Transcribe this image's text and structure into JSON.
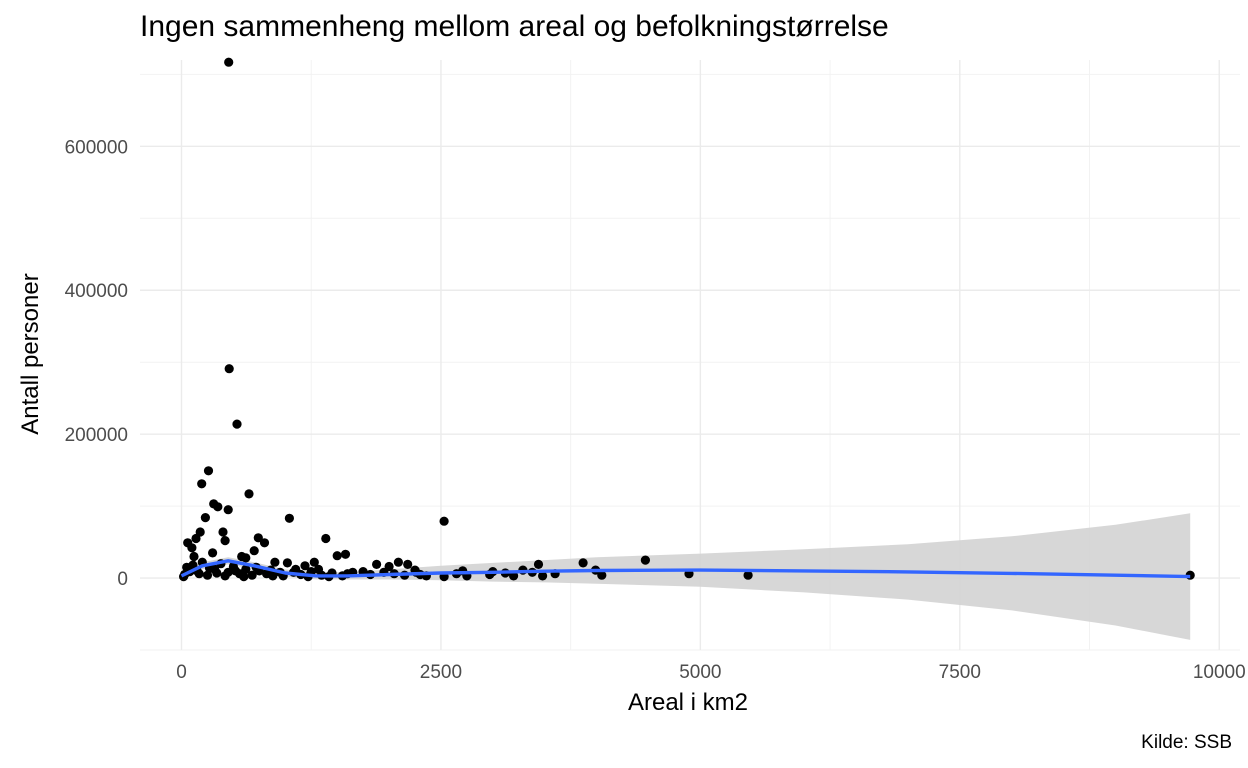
{
  "chart_data": {
    "type": "scatter",
    "title": "Ingen sammenheng mellom areal og befolkningstørrelse",
    "xlabel": "Areal i km2",
    "ylabel": "Antall personer",
    "caption": "Kilde: SSB",
    "xlim": [
      -400,
      10200
    ],
    "ylim": [
      -100000,
      720000
    ],
    "x_ticks": [
      0,
      2500,
      5000,
      7500,
      10000
    ],
    "x_tick_labels": [
      "0",
      "2500",
      "5000",
      "7500",
      "10000"
    ],
    "y_ticks": [
      0,
      200000,
      400000,
      600000
    ],
    "y_tick_labels": [
      "0",
      "200000",
      "400000",
      "600000"
    ],
    "grid": true,
    "point_color": "#000000",
    "smooth_color": "#3366ff",
    "band_color": "#d3d3d3",
    "points": [
      [
        455,
        717000
      ],
      [
        460,
        291000
      ],
      [
        535,
        214000
      ],
      [
        260,
        149000
      ],
      [
        650,
        117000
      ],
      [
        195,
        131000
      ],
      [
        310,
        103000
      ],
      [
        350,
        99000
      ],
      [
        450,
        95000
      ],
      [
        400,
        64000
      ],
      [
        1040,
        83000
      ],
      [
        2530,
        79000
      ],
      [
        1390,
        55000
      ],
      [
        230,
        84000
      ],
      [
        180,
        64000
      ],
      [
        740,
        56000
      ],
      [
        800,
        49000
      ],
      [
        700,
        38000
      ],
      [
        60,
        49000
      ],
      [
        140,
        55000
      ],
      [
        100,
        42000
      ],
      [
        120,
        30000
      ],
      [
        300,
        35000
      ],
      [
        420,
        52000
      ],
      [
        580,
        30000
      ],
      [
        620,
        28000
      ],
      [
        900,
        22000
      ],
      [
        1020,
        21000
      ],
      [
        1190,
        17000
      ],
      [
        1280,
        22000
      ],
      [
        1500,
        31000
      ],
      [
        1580,
        33000
      ],
      [
        1100,
        12000
      ],
      [
        1650,
        8000
      ],
      [
        1880,
        19000
      ],
      [
        2000,
        16000
      ],
      [
        2090,
        22000
      ],
      [
        2180,
        19000
      ],
      [
        2260,
        8000
      ],
      [
        2050,
        6000
      ],
      [
        2360,
        3000
      ],
      [
        2530,
        2000
      ],
      [
        2650,
        6000
      ],
      [
        2710,
        10000
      ],
      [
        2970,
        5000
      ],
      [
        3120,
        7000
      ],
      [
        3290,
        11000
      ],
      [
        3380,
        8000
      ],
      [
        3480,
        3000
      ],
      [
        3440,
        19000
      ],
      [
        3870,
        21000
      ],
      [
        3990,
        11000
      ],
      [
        4050,
        4000
      ],
      [
        4470,
        25000
      ],
      [
        4890,
        6000
      ],
      [
        5460,
        4000
      ],
      [
        9720,
        4000
      ],
      [
        30,
        5000
      ],
      [
        50,
        15000
      ],
      [
        80,
        9000
      ],
      [
        150,
        10000
      ],
      [
        200,
        22000
      ],
      [
        250,
        4000
      ],
      [
        320,
        12000
      ],
      [
        380,
        20000
      ],
      [
        450,
        8000
      ],
      [
        500,
        16000
      ],
      [
        560,
        6000
      ],
      [
        620,
        12000
      ],
      [
        680,
        4000
      ],
      [
        750,
        10000
      ],
      [
        820,
        6000
      ],
      [
        880,
        3000
      ],
      [
        950,
        8000
      ],
      [
        1150,
        5000
      ],
      [
        1250,
        9000
      ],
      [
        1350,
        4000
      ],
      [
        1450,
        7000
      ],
      [
        1550,
        3000
      ],
      [
        1750,
        9000
      ],
      [
        1820,
        5000
      ],
      [
        1950,
        8000
      ],
      [
        2150,
        4000
      ],
      [
        2250,
        11000
      ],
      [
        20,
        2000
      ],
      [
        110,
        18000
      ],
      [
        170,
        6000
      ],
      [
        270,
        14000
      ],
      [
        340,
        7000
      ],
      [
        420,
        3000
      ],
      [
        520,
        10000
      ],
      [
        600,
        2000
      ],
      [
        720,
        15000
      ],
      [
        860,
        11000
      ],
      [
        980,
        3000
      ],
      [
        1080,
        8000
      ],
      [
        1220,
        2000
      ],
      [
        1320,
        12000
      ],
      [
        1420,
        2000
      ],
      [
        1600,
        6000
      ],
      [
        2300,
        5000
      ],
      [
        2750,
        3000
      ],
      [
        3000,
        9000
      ],
      [
        3200,
        3000
      ],
      [
        3600,
        6000
      ]
    ],
    "smooth": [
      [
        0,
        3000
      ],
      [
        200,
        17000
      ],
      [
        450,
        24000
      ],
      [
        700,
        17000
      ],
      [
        1000,
        7000
      ],
      [
        1300,
        3000
      ],
      [
        1600,
        3000
      ],
      [
        2000,
        5000
      ],
      [
        2500,
        7000
      ],
      [
        3000,
        8000
      ],
      [
        3500,
        9500
      ],
      [
        4000,
        10500
      ],
      [
        5000,
        11000
      ],
      [
        6000,
        10000
      ],
      [
        7000,
        8500
      ],
      [
        8000,
        6500
      ],
      [
        9000,
        4000
      ],
      [
        9720,
        2000
      ]
    ],
    "band_upper": [
      [
        0,
        8000
      ],
      [
        200,
        22000
      ],
      [
        450,
        29000
      ],
      [
        700,
        22000
      ],
      [
        1000,
        12000
      ],
      [
        1300,
        8000
      ],
      [
        1600,
        8000
      ],
      [
        2000,
        12000
      ],
      [
        2500,
        17000
      ],
      [
        3000,
        21000
      ],
      [
        3500,
        25000
      ],
      [
        4000,
        29000
      ],
      [
        5000,
        34000
      ],
      [
        6000,
        40000
      ],
      [
        7000,
        47000
      ],
      [
        8000,
        58000
      ],
      [
        9000,
        74000
      ],
      [
        9720,
        90000
      ]
    ],
    "band_lower": [
      [
        0,
        -2000
      ],
      [
        200,
        12000
      ],
      [
        450,
        19000
      ],
      [
        700,
        12000
      ],
      [
        1000,
        2000
      ],
      [
        1300,
        -2000
      ],
      [
        1600,
        -2000
      ],
      [
        2000,
        -2000
      ],
      [
        2500,
        -3000
      ],
      [
        3000,
        -5000
      ],
      [
        3500,
        -6000
      ],
      [
        4000,
        -8000
      ],
      [
        5000,
        -12000
      ],
      [
        6000,
        -20000
      ],
      [
        7000,
        -30000
      ],
      [
        8000,
        -45000
      ],
      [
        9000,
        -66000
      ],
      [
        9720,
        -86000
      ]
    ]
  }
}
